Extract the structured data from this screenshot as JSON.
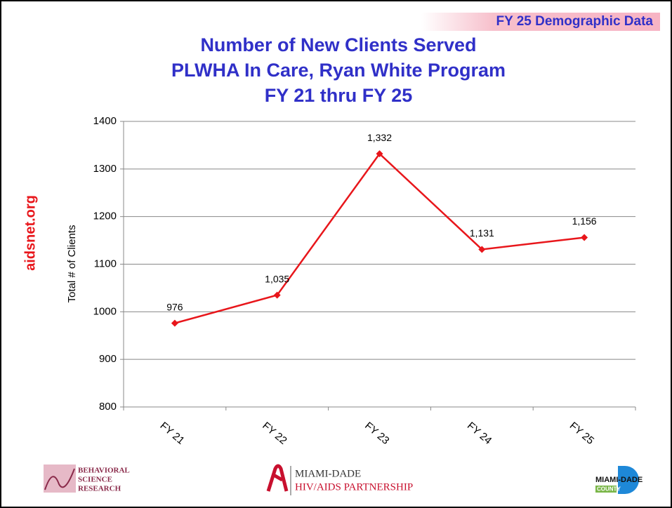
{
  "banner": "FY 25 Demographic Data",
  "side_text": "aidsnet.org",
  "logos": {
    "bsr": [
      "BEHAVIORAL",
      "SCIENCE",
      "RESEARCH"
    ],
    "partnership": [
      "MIAMI-DADE",
      "HIV/AIDS PARTNERSHIP"
    ],
    "county": [
      "MIAMI-DADE",
      "COUNTY"
    ]
  },
  "chart_data": {
    "type": "line",
    "title": [
      "Number of New Clients Served",
      "PLWHA In Care, Ryan White Program",
      "FY 21 thru FY 25"
    ],
    "y_label": "Total # of Clients",
    "categories": [
      "FY 21",
      "FY 22",
      "FY 23",
      "FY 24",
      "FY 25"
    ],
    "series": [
      {
        "color": "#e8161b",
        "values": [
          976,
          1035,
          1332,
          1131,
          1156
        ],
        "value_labels": [
          "976",
          "1,035",
          "1,332",
          "1,131",
          "1,156"
        ]
      }
    ],
    "ylim": [
      800,
      1400
    ],
    "yticks": [
      800,
      900,
      1000,
      1100,
      1200,
      1300,
      1400
    ],
    "grid": true
  }
}
